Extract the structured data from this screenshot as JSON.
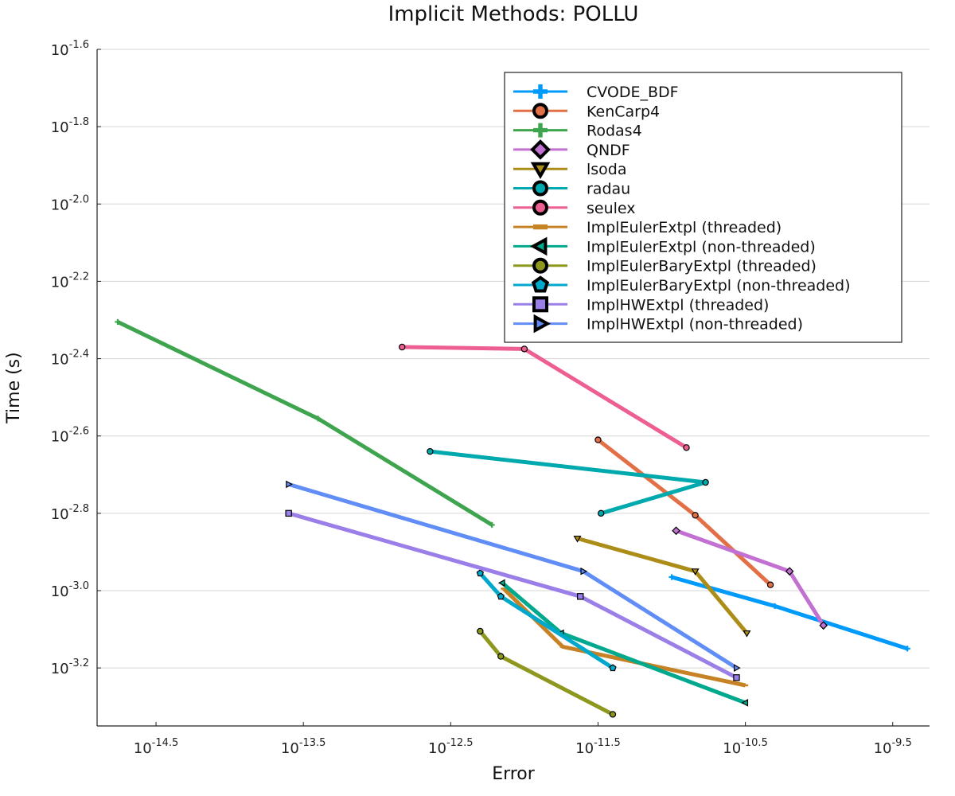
{
  "chart_data": {
    "type": "line",
    "title": "Implicit Methods: POLLU",
    "xlabel": "Error",
    "ylabel": "Time (s)",
    "xscale": "log10",
    "yscale": "log10",
    "xlim_log10": [
      -14.9,
      -9.25
    ],
    "ylim_log10": [
      -3.35,
      -1.6
    ],
    "x_tick_exponents": [
      "-14.5",
      "-13.5",
      "-12.5",
      "-11.5",
      "-10.5",
      "-9.5"
    ],
    "y_tick_exponents": [
      "-1.6",
      "-1.8",
      "-2.0",
      "-2.2",
      "-2.4",
      "-2.6",
      "-2.8",
      "-3.0",
      "-3.2"
    ],
    "tick_base": "10",
    "grid": "horizontal",
    "legend_position": "top-right",
    "series": [
      {
        "name": "CVODE_BDF",
        "color": "#009AFA",
        "marker": "cross",
        "x_log10": [
          -11.0,
          -10.3,
          -9.4
        ],
        "y_log10": [
          -2.965,
          -3.04,
          -3.15
        ]
      },
      {
        "name": "KenCarp4",
        "color": "#E36F47",
        "marker": "circle",
        "x_log10": [
          -11.5,
          -10.84,
          -10.33
        ],
        "y_log10": [
          -2.61,
          -2.805,
          -2.985
        ]
      },
      {
        "name": "Rodas4",
        "color": "#3EA44E",
        "marker": "cross",
        "x_log10": [
          -14.76,
          -13.4,
          -12.22
        ],
        "y_log10": [
          -2.305,
          -2.555,
          -2.83
        ]
      },
      {
        "name": "QNDF",
        "color": "#C271D2",
        "marker": "diamond",
        "x_log10": [
          -10.97,
          -10.2,
          -9.97
        ],
        "y_log10": [
          -2.845,
          -2.95,
          -3.09
        ]
      },
      {
        "name": "lsoda",
        "color": "#AC8D18",
        "marker": "dtriangle",
        "x_log10": [
          -11.64,
          -10.84,
          -10.49
        ],
        "y_log10": [
          -2.865,
          -2.95,
          -3.11
        ]
      },
      {
        "name": "radau",
        "color": "#00A9AD",
        "marker": "circle",
        "x_log10": [
          -12.64,
          -10.77,
          -11.48
        ],
        "y_log10": [
          -2.64,
          -2.72,
          -2.8
        ]
      },
      {
        "name": "seulex",
        "color": "#ED5E93",
        "marker": "circle",
        "x_log10": [
          -12.83,
          -12.0,
          -10.9
        ],
        "y_log10": [
          -2.37,
          -2.375,
          -2.63
        ]
      },
      {
        "name": "ImplEulerExtpl (threaded)",
        "color": "#C68225",
        "marker": "hline",
        "x_log10": [
          -12.14,
          -11.74,
          -10.5
        ],
        "y_log10": [
          -2.995,
          -3.145,
          -3.245
        ]
      },
      {
        "name": "ImplEulerExtpl (non-threaded)",
        "color": "#00A98D",
        "marker": "ltriangle",
        "x_log10": [
          -12.15,
          -11.75,
          -10.5
        ],
        "y_log10": [
          -2.98,
          -3.11,
          -3.29
        ]
      },
      {
        "name": "ImplEulerBaryExtpl (threaded)",
        "color": "#8E971E",
        "marker": "circle",
        "x_log10": [
          -12.3,
          -12.16,
          -11.4
        ],
        "y_log10": [
          -3.105,
          -3.17,
          -3.32
        ]
      },
      {
        "name": "ImplEulerBaryExtpl (non-threaded)",
        "color": "#00A8CB",
        "marker": "pentagon",
        "x_log10": [
          -12.3,
          -12.16,
          -11.4
        ],
        "y_log10": [
          -2.955,
          -3.015,
          -3.2
        ]
      },
      {
        "name": "ImplHWExtpl (threaded)",
        "color": "#9B7FE9",
        "marker": "square",
        "x_log10": [
          -13.6,
          -11.62,
          -10.56
        ],
        "y_log10": [
          -2.8,
          -3.015,
          -3.225
        ]
      },
      {
        "name": "ImplHWExtpl (non-threaded)",
        "color": "#618DF6",
        "marker": "rtriangle",
        "x_log10": [
          -13.6,
          -11.6,
          -10.56
        ],
        "y_log10": [
          -2.725,
          -2.95,
          -3.2
        ]
      }
    ]
  }
}
